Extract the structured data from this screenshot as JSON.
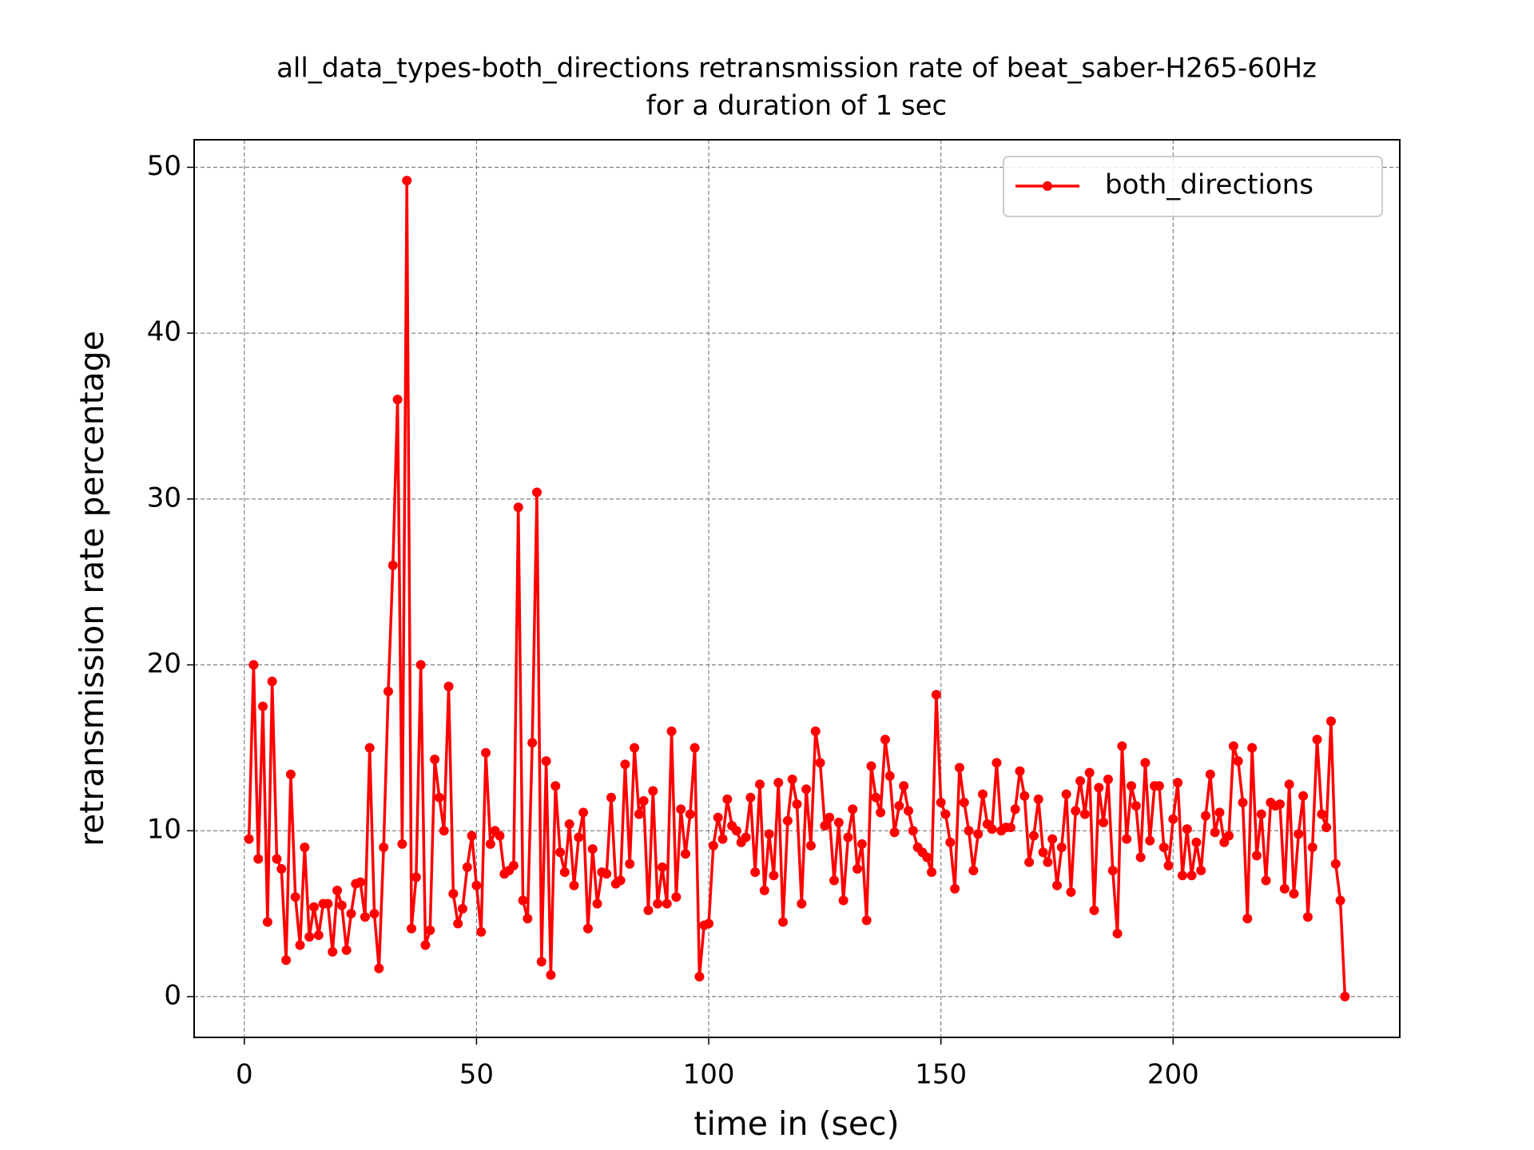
{
  "chart_data": {
    "type": "line",
    "title": [
      "all_data_types-both_directions retransmission rate of beat_saber-H265-60Hz",
      "for a duration of 1 sec"
    ],
    "xlabel": "time in (sec)",
    "ylabel": "retransmission rate percentage",
    "x": [
      1,
      2,
      3,
      4,
      5,
      6,
      7,
      8,
      9,
      10,
      11,
      12,
      13,
      14,
      15,
      16,
      17,
      18,
      19,
      20,
      21,
      22,
      23,
      24,
      25,
      26,
      27,
      28,
      29,
      30,
      31,
      32,
      33,
      34,
      35,
      36,
      37,
      38,
      39,
      40,
      41,
      42,
      43,
      44,
      45,
      46,
      47,
      48,
      49,
      50,
      51,
      52,
      53,
      54,
      55,
      56,
      57,
      58,
      59,
      60,
      61,
      62,
      63,
      64,
      65,
      66,
      67,
      68,
      69,
      70,
      71,
      72,
      73,
      74,
      75,
      76,
      77,
      78,
      79,
      80,
      81,
      82,
      83,
      84,
      85,
      86,
      87,
      88,
      89,
      90,
      91,
      92,
      93,
      94,
      95,
      96,
      97,
      98,
      99,
      100,
      101,
      102,
      103,
      104,
      105,
      106,
      107,
      108,
      109,
      110,
      111,
      112,
      113,
      114,
      115,
      116,
      117,
      118,
      119,
      120,
      121,
      122,
      123,
      124,
      125,
      126,
      127,
      128,
      129,
      130,
      131,
      132,
      133,
      134,
      135,
      136,
      137,
      138,
      139,
      140,
      141,
      142,
      143,
      144,
      145,
      146,
      147,
      148,
      149,
      150,
      151,
      152,
      153,
      154,
      155,
      156,
      157,
      158,
      159,
      160,
      161,
      162,
      163,
      164,
      165,
      166,
      167,
      168,
      169,
      170,
      171,
      172,
      173,
      174,
      175,
      176,
      177,
      178,
      179,
      180,
      181,
      182,
      183,
      184,
      185,
      186,
      187,
      188,
      189,
      190,
      191,
      192,
      193,
      194,
      195,
      196,
      197,
      198,
      199,
      200,
      201,
      202,
      203,
      204,
      205,
      206,
      207,
      208,
      209,
      210,
      211,
      212,
      213,
      214,
      215,
      216,
      217,
      218,
      219,
      220,
      221,
      222,
      223,
      224,
      225,
      226,
      227,
      228,
      229,
      230,
      231,
      232,
      233,
      234,
      235,
      236,
      237
    ],
    "series": [
      {
        "name": "both_directions",
        "color": "#ff0000",
        "values": [
          9.5,
          20,
          8.3,
          17.5,
          4.5,
          19,
          8.3,
          7.7,
          2.2,
          13.4,
          6,
          3.1,
          9,
          3.6,
          5.4,
          3.7,
          5.6,
          5.6,
          2.7,
          6.4,
          5.5,
          2.8,
          5,
          6.8,
          6.9,
          4.8,
          15,
          5,
          1.7,
          9,
          18.4,
          26,
          36,
          9.2,
          49.2,
          4.1,
          7.2,
          20,
          3.1,
          4,
          14.3,
          12,
          10,
          18.7,
          6.2,
          4.4,
          5.3,
          7.8,
          9.7,
          6.7,
          3.9,
          14.7,
          9.2,
          10,
          9.7,
          7.4,
          7.6,
          7.9,
          29.5,
          5.8,
          4.7,
          15.3,
          30.4,
          2.1,
          14.2,
          1.3,
          12.7,
          8.7,
          7.5,
          10.4,
          6.7,
          9.6,
          11.1,
          4.1,
          8.9,
          5.6,
          7.5,
          7.4,
          12,
          6.8,
          7,
          14,
          8,
          15,
          11,
          11.8,
          5.2,
          12.4,
          5.6,
          7.8,
          5.6,
          16,
          6,
          11.3,
          8.6,
          11,
          15,
          1.2,
          4.3,
          4.4,
          9.1,
          10.8,
          9.5,
          11.9,
          10.3,
          10,
          9.3,
          9.6,
          12,
          7.5,
          12.8,
          6.4,
          9.8,
          7.3,
          12.9,
          4.5,
          10.6,
          13.1,
          11.6,
          5.6,
          12.5,
          9.1,
          16,
          14.1,
          10.3,
          10.8,
          7,
          10.5,
          5.8,
          9.6,
          11.3,
          7.7,
          9.2,
          4.6,
          13.9,
          12,
          11.1,
          15.5,
          13.3,
          9.9,
          11.5,
          12.7,
          11.2,
          10,
          9,
          8.7,
          8.4,
          7.5,
          18.2,
          11.7,
          11,
          9.3,
          6.5,
          13.8,
          11.7,
          10,
          7.6,
          9.8,
          12.2,
          10.4,
          10.1,
          14.1,
          10,
          10.2,
          10.2,
          11.3,
          13.6,
          12.1,
          8.1,
          9.7,
          11.9,
          8.7,
          8.1,
          9.5,
          6.7,
          9,
          12.2,
          6.3,
          11.2,
          13,
          11,
          13.5,
          5.2,
          12.6,
          10.5,
          13.1,
          7.6,
          3.8,
          15.1,
          9.5,
          12.7,
          11.5,
          8.4,
          14.1,
          9.4,
          12.7,
          12.7,
          9,
          7.9,
          10.7,
          12.9,
          7.3,
          10.1,
          7.3,
          9.3,
          7.6,
          10.9,
          13.4,
          9.9,
          11.1,
          9.3,
          9.7,
          15.1,
          14.2,
          11.7,
          4.7,
          15,
          8.5,
          11,
          7,
          11.7,
          11.5,
          11.6,
          6.5,
          12.8,
          6.2,
          9.8,
          12.1,
          4.8,
          9,
          15.5,
          11,
          10.2,
          16.6,
          8,
          5.8,
          0
        ]
      }
    ],
    "xlim": [
      -10.8,
      248.8
    ],
    "ylim": [
      -2.46,
      51.66
    ],
    "xticks": [
      0,
      50,
      100,
      150,
      200
    ],
    "yticks": [
      0,
      10,
      20,
      30,
      40,
      50
    ],
    "grid": true,
    "legend": "upper right"
  }
}
